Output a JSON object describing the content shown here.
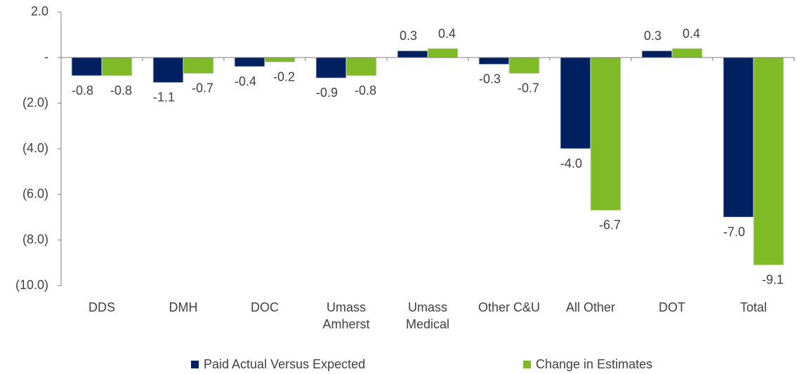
{
  "chart_data": {
    "type": "bar",
    "categories": [
      "DDS",
      "DMH",
      "DOC",
      "Umass Amherst",
      "Umass Medical",
      "Other C&U",
      "All Other",
      "DOT",
      "Total"
    ],
    "series": [
      {
        "name": "Paid Actual Versus Expected",
        "color": "#002060",
        "values": [
          -0.8,
          -1.1,
          -0.4,
          -0.9,
          0.3,
          -0.3,
          -4.0,
          0.3,
          -7.0
        ],
        "value_labels": [
          "-0.8",
          "-1.1",
          "-0.4",
          "-0.9",
          "0.3",
          "-0.3",
          "-4.0",
          "0.3",
          "-7.0"
        ]
      },
      {
        "name": "Change in Estimates",
        "color": "#7fba27",
        "values": [
          -0.8,
          -0.7,
          -0.2,
          -0.8,
          0.4,
          -0.7,
          -6.7,
          0.4,
          -9.1
        ],
        "value_labels": [
          "-0.8",
          "-0.7",
          "-0.2",
          "-0.8",
          "0.4",
          "-0.7",
          "-6.7",
          "0.4",
          "-9.1"
        ]
      }
    ],
    "ylim": [
      -10,
      2
    ],
    "yticks": [
      {
        "value": 2,
        "label": "2.0"
      },
      {
        "value": 0,
        "label": "-"
      },
      {
        "value": -2,
        "label": "(2.0)"
      },
      {
        "value": -4,
        "label": "(4.0)"
      },
      {
        "value": -6,
        "label": "(6.0)"
      },
      {
        "value": -8,
        "label": "(8.0)"
      },
      {
        "value": -10,
        "label": "(10.0)"
      }
    ],
    "legend": "bottom"
  }
}
